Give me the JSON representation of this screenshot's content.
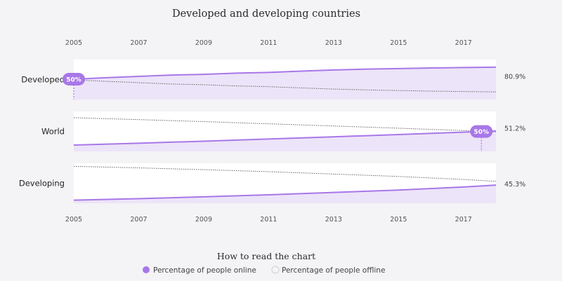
{
  "chart_data": {
    "type": "area",
    "title": "Developed and developing countries",
    "x_ticks": [
      "2005",
      "2007",
      "2009",
      "2011",
      "2013",
      "2015",
      "2017"
    ],
    "xlim": [
      2005,
      2018
    ],
    "ylim": [
      0,
      100
    ],
    "series_names": [
      "Percentage of people online",
      "Percentage of people offline"
    ],
    "panels": [
      {
        "label": "Developed",
        "end_value_label": "80.9%",
        "online": [
          [
            2005,
            50.9
          ],
          [
            2006,
            54.5
          ],
          [
            2007,
            57.8
          ],
          [
            2008,
            61.2
          ],
          [
            2009,
            63.0
          ],
          [
            2010,
            66.0
          ],
          [
            2011,
            67.8
          ],
          [
            2012,
            71.0
          ],
          [
            2013,
            73.8
          ],
          [
            2014,
            76.0
          ],
          [
            2015,
            77.5
          ],
          [
            2016,
            79.0
          ],
          [
            2017,
            80.0
          ],
          [
            2018,
            80.9
          ]
        ],
        "marker": {
          "x": 2005,
          "label": "50%"
        }
      },
      {
        "label": "World",
        "end_value_label": "51.2%",
        "online": [
          [
            2005,
            15.8
          ],
          [
            2007,
            20.5
          ],
          [
            2009,
            25.5
          ],
          [
            2011,
            31.0
          ],
          [
            2013,
            36.5
          ],
          [
            2015,
            42.0
          ],
          [
            2017,
            48.0
          ],
          [
            2018,
            51.2
          ]
        ],
        "marker": {
          "x": 2017.55,
          "label": "50%"
        }
      },
      {
        "label": "Developing",
        "end_value_label": "45.3%",
        "online": [
          [
            2005,
            7.7
          ],
          [
            2007,
            11.5
          ],
          [
            2009,
            16.0
          ],
          [
            2011,
            21.0
          ],
          [
            2013,
            27.0
          ],
          [
            2015,
            33.0
          ],
          [
            2017,
            40.5
          ],
          [
            2018,
            45.3
          ]
        ],
        "marker": null
      }
    ],
    "legend_title": "How to read the chart",
    "colors": {
      "online": "#a877e8",
      "online_fill": "#ece4f8",
      "offline_line": "#666666",
      "offline_bg": "#ffffff",
      "marker_fill": "#a877e8"
    }
  }
}
